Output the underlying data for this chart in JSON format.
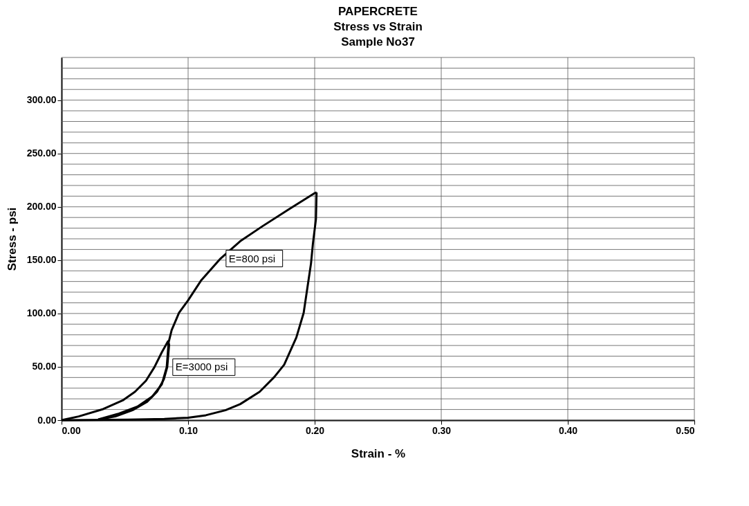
{
  "chart_data": {
    "type": "line",
    "title": [
      "PAPERCRETE",
      "Stress vs Strain",
      "Sample No37"
    ],
    "xlabel": "Strain - %",
    "ylabel": "Stress - psi",
    "xlim": [
      0,
      0.5
    ],
    "xticks": [
      {
        "value": 0,
        "label": "0.00"
      },
      {
        "value": 0.1,
        "label": "0.10"
      },
      {
        "value": 0.2,
        "label": "0.20"
      },
      {
        "value": 0.3,
        "label": "0.30"
      },
      {
        "value": 0.4,
        "label": "0.40"
      },
      {
        "value": 0.5,
        "label": "0.50"
      }
    ],
    "ylim": [
      0,
      340
    ],
    "yticks": [
      {
        "value": 0,
        "label": "0.00"
      },
      {
        "value": 10,
        "label": null
      },
      {
        "value": 20,
        "label": null
      },
      {
        "value": 30,
        "label": null
      },
      {
        "value": 40,
        "label": null
      },
      {
        "value": 50,
        "label": "50.00"
      },
      {
        "value": 60,
        "label": null
      },
      {
        "value": 70,
        "label": null
      },
      {
        "value": 80,
        "label": null
      },
      {
        "value": 90,
        "label": null
      },
      {
        "value": 100,
        "label": "100.00"
      },
      {
        "value": 110,
        "label": null
      },
      {
        "value": 120,
        "label": null
      },
      {
        "value": 130,
        "label": null
      },
      {
        "value": 140,
        "label": null
      },
      {
        "value": 150,
        "label": "150.00"
      },
      {
        "value": 160,
        "label": null
      },
      {
        "value": 170,
        "label": null
      },
      {
        "value": 180,
        "label": null
      },
      {
        "value": 190,
        "label": null
      },
      {
        "value": 200,
        "label": "200.00"
      },
      {
        "value": 210,
        "label": null
      },
      {
        "value": 220,
        "label": null
      },
      {
        "value": 230,
        "label": null
      },
      {
        "value": 240,
        "label": null
      },
      {
        "value": 250,
        "label": "250.00"
      },
      {
        "value": 260,
        "label": null
      },
      {
        "value": 270,
        "label": null
      },
      {
        "value": 280,
        "label": null
      },
      {
        "value": 290,
        "label": null
      },
      {
        "value": 300,
        "label": "300.00"
      },
      {
        "value": 310,
        "label": null
      },
      {
        "value": 320,
        "label": null
      },
      {
        "value": 330,
        "label": null
      },
      {
        "value": 340,
        "label": null
      }
    ],
    "grid": true,
    "marker": "none",
    "line_style": "solid",
    "series": [
      {
        "color": "#000000",
        "x": [
          0,
          0.0135,
          0.0329,
          0.0483,
          0.058,
          0.0667,
          0.0734,
          0.0792,
          0.0841,
          0.085,
          0.0835,
          0.0808,
          0.0754,
          0.0676,
          0.056,
          0.0425,
          0.029
        ],
        "values": [
          0,
          3.5,
          10.4,
          18.5,
          26.6,
          37,
          49.7,
          63.6,
          74,
          70.6,
          49.7,
          38.2,
          26.6,
          17.3,
          9.3,
          3.5,
          0.7
        ]
      },
      {
        "color": "#000000",
        "x": [
          0.029,
          0.0444,
          0.0599,
          0.0715,
          0.0792,
          0.0831,
          0.0846,
          0.087,
          0.0928,
          0.0999,
          0.1101,
          0.1256,
          0.1411,
          0.1585,
          0.1797,
          0.2,
          0.2015
        ],
        "values": [
          0.7,
          5.8,
          12.7,
          22,
          33.5,
          49.7,
          72.9,
          84.4,
          100.6,
          112.2,
          130.7,
          151.5,
          167.7,
          181.6,
          197.8,
          212.8,
          213.5
        ]
      },
      {
        "color": "#000000",
        "x": [
          0.2015,
          0.201,
          0.1986,
          0.1971,
          0.1942,
          0.1913,
          0.1855,
          0.1759,
          0.1681,
          0.1565,
          0.1411,
          0.1295,
          0.114,
          0.0999,
          0.0812,
          0.0522,
          0
        ],
        "values": [
          213.5,
          188.5,
          165.4,
          146.9,
          123.8,
          100.6,
          77.5,
          52,
          40.5,
          26.6,
          15,
          9.3,
          4.6,
          2.3,
          1.2,
          0.5,
          0
        ]
      }
    ],
    "annotations": [
      {
        "text": "E=800 psi",
        "x": 0.1256,
        "y": 151.5
      },
      {
        "text": "E=3000 psi",
        "x": 0.0835,
        "y": 49.7
      }
    ]
  }
}
